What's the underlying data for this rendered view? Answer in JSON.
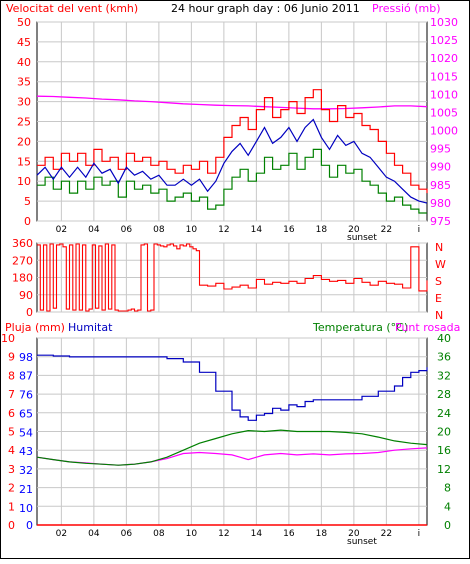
{
  "colors": {
    "wind": "#ff0000",
    "gust": "#ff0000",
    "pressure": "#ff00ff",
    "humidity": "#0000c0",
    "temperature": "#008000",
    "dewpoint": "#ff00ff",
    "rain": "#ff0000",
    "grid": "#c8c8c8",
    "blue_axis": "#0000ff"
  },
  "chart_data": [
    {
      "type": "line",
      "title": "24 hour graph day : 06 Junio 2011",
      "y_left_label": "Velocitat del vent (kmh)",
      "y_right_label": "Pressió (mb)",
      "x_ticks": [
        "02",
        "04",
        "06",
        "08",
        "10",
        "12",
        "14",
        "16",
        "18",
        "20",
        "22",
        "i"
      ],
      "x_annotation": "sunset",
      "y_left_ticks": [
        "0",
        "5",
        "10",
        "15",
        "20",
        "25",
        "30",
        "35",
        "40",
        "45",
        "50"
      ],
      "y_right_ticks": [
        "975",
        "980",
        "985",
        "990",
        "995",
        "1000",
        "1005",
        "1010",
        "1015",
        "1020",
        "1025",
        "1030"
      ],
      "ylim_left": [
        0,
        50
      ],
      "ylim_right": [
        975,
        1030
      ],
      "xlim_hours": [
        0,
        24
      ],
      "series": [
        {
          "name": "Gust",
          "axis": "left",
          "x": [
            0,
            0.5,
            1,
            1.5,
            2,
            2.5,
            3,
            3.5,
            4,
            4.5,
            5,
            5.5,
            6,
            6.5,
            7,
            7.5,
            8,
            8.5,
            9,
            9.5,
            10,
            10.5,
            11,
            11.5,
            12,
            12.5,
            13,
            13.5,
            14,
            14.5,
            15,
            15.5,
            16,
            16.5,
            17,
            17.5,
            18,
            18.5,
            19,
            19.5,
            20,
            20.5,
            21,
            21.5,
            22,
            22.5,
            23,
            23.5,
            24
          ],
          "values": [
            14,
            16,
            13,
            17,
            15,
            17,
            14,
            18,
            15,
            16,
            13,
            17,
            15,
            16,
            14,
            15,
            13,
            12,
            14,
            13,
            15,
            12,
            16,
            21,
            24,
            26,
            23,
            28,
            31,
            26,
            28,
            30,
            27,
            31,
            33,
            28,
            25,
            29,
            26,
            27,
            24,
            23,
            20,
            17,
            14,
            12,
            9,
            8,
            7
          ]
        },
        {
          "name": "Wind",
          "axis": "left",
          "x": [
            0,
            0.5,
            1,
            1.5,
            2,
            2.5,
            3,
            3.5,
            4,
            4.5,
            5,
            5.5,
            6,
            6.5,
            7,
            7.5,
            8,
            8.5,
            9,
            9.5,
            10,
            10.5,
            11,
            11.5,
            12,
            12.5,
            13,
            13.5,
            14,
            14.5,
            15,
            15.5,
            16,
            16.5,
            17,
            17.5,
            18,
            18.5,
            19,
            19.5,
            20,
            20.5,
            21,
            21.5,
            22,
            22.5,
            23,
            23.5,
            24
          ],
          "values": [
            9,
            11,
            8,
            10,
            7,
            10,
            8,
            11,
            9,
            10,
            6,
            10,
            8,
            9,
            7,
            8,
            5,
            6,
            7,
            5,
            6,
            3,
            4,
            8,
            11,
            13,
            10,
            12,
            16,
            13,
            14,
            17,
            13,
            16,
            18,
            14,
            11,
            14,
            12,
            13,
            10,
            9,
            7,
            5,
            6,
            4,
            3,
            2,
            2
          ]
        },
        {
          "name": "Pressió",
          "axis": "right",
          "x": [
            0,
            1,
            2,
            3,
            4,
            5,
            6,
            7,
            8,
            9,
            10,
            11,
            12,
            13,
            14,
            15,
            16,
            17,
            18,
            19,
            20,
            21,
            22,
            23,
            24
          ],
          "values": [
            1009.5,
            1009.4,
            1009.2,
            1009,
            1008.7,
            1008.5,
            1008.2,
            1008,
            1007.7,
            1007.4,
            1007.2,
            1007,
            1006.9,
            1006.8,
            1006.6,
            1006.4,
            1006.2,
            1006,
            1006,
            1006.1,
            1006.3,
            1006.5,
            1006.8,
            1006.8,
            1006.6
          ]
        }
      ]
    },
    {
      "type": "line",
      "y_left_ticks": [
        "0",
        "90",
        "180",
        "270",
        "360"
      ],
      "y_right_ticks": [
        "N",
        "W",
        "S",
        "E",
        "N"
      ],
      "ylim": [
        0,
        360
      ],
      "xlim_hours": [
        0,
        24
      ],
      "series": [
        {
          "name": "Direcció",
          "x": [
            0,
            0.2,
            0.4,
            0.6,
            0.8,
            1,
            1.2,
            1.4,
            1.6,
            1.8,
            2,
            2.2,
            2.4,
            2.6,
            2.8,
            3,
            3.2,
            3.4,
            3.6,
            3.8,
            4,
            4.2,
            4.4,
            4.6,
            4.8,
            5,
            5.2,
            5.4,
            5.6,
            5.8,
            6,
            6.2,
            6.4,
            6.6,
            6.8,
            7,
            7.2,
            7.4,
            7.6,
            7.8,
            8,
            8.2,
            8.4,
            8.6,
            8.8,
            9,
            9.2,
            9.4,
            9.6,
            9.8,
            10,
            10.5,
            11,
            11.5,
            12,
            12.5,
            13,
            13.5,
            14,
            14.5,
            15,
            15.5,
            16,
            16.5,
            17,
            17.5,
            18,
            18.5,
            19,
            19.5,
            20,
            20.5,
            21,
            21.5,
            22,
            22.5,
            23,
            23.5,
            24
          ],
          "values": [
            350,
            10,
            350,
            5,
            355,
            20,
            350,
            355,
            340,
            15,
            350,
            10,
            355,
            10,
            350,
            5,
            15,
            350,
            20,
            345,
            10,
            355,
            15,
            350,
            10,
            5,
            5,
            5,
            10,
            15,
            5,
            10,
            350,
            355,
            5,
            10,
            355,
            350,
            345,
            340,
            350,
            355,
            345,
            330,
            350,
            345,
            355,
            340,
            330,
            320,
            140,
            135,
            150,
            120,
            130,
            140,
            125,
            170,
            145,
            155,
            150,
            160,
            150,
            175,
            190,
            170,
            160,
            165,
            150,
            175,
            155,
            140,
            160,
            150,
            145,
            125,
            340,
            110,
            165
          ]
        }
      ]
    },
    {
      "type": "line",
      "y_left_label": "Pluja (mm)",
      "y_left2_label": "Humitat",
      "y_right_label": "Temperatura (°C)",
      "y_right2_label": "Punt rosada",
      "y_left_ticks": [
        "0",
        "1",
        "2",
        "3",
        "4",
        "5",
        "6",
        "7",
        "8",
        "9",
        "10"
      ],
      "y_left2_ticks": [
        "0",
        "10",
        "21",
        "32",
        "43",
        "54",
        "65",
        "76",
        "87",
        "98"
      ],
      "y_right_ticks": [
        "0",
        "4",
        "8",
        "12",
        "16",
        "20",
        "24",
        "28",
        "32",
        "36",
        "40"
      ],
      "ylim_rain": [
        0,
        10
      ],
      "ylim_humidity": [
        0,
        109
      ],
      "ylim_temperature": [
        0,
        40
      ],
      "xlim_hours": [
        0,
        24
      ],
      "series": [
        {
          "name": "Humitat",
          "x": [
            0,
            1,
            2,
            3,
            4,
            5,
            6,
            7,
            8,
            9,
            10,
            11,
            12,
            12.5,
            13,
            13.5,
            14,
            14.5,
            15,
            15.5,
            16,
            16.5,
            17,
            17.5,
            18,
            19,
            20,
            21,
            22,
            22.5,
            23,
            23.5,
            24
          ],
          "values": [
            99,
            98.5,
            98,
            98,
            98,
            98,
            98,
            98,
            97,
            95,
            89,
            78,
            67,
            63,
            61,
            64,
            65,
            68,
            67,
            70,
            69,
            72,
            73,
            73,
            73,
            73,
            75,
            78,
            81,
            86,
            89,
            90,
            92
          ]
        },
        {
          "name": "Temperatura (°C)",
          "x": [
            0,
            1,
            2,
            3,
            4,
            5,
            6,
            7,
            8,
            9,
            10,
            11,
            12,
            13,
            14,
            15,
            16,
            17,
            18,
            19,
            20,
            21,
            22,
            23,
            24
          ],
          "values": [
            14.5,
            14,
            13.5,
            13.2,
            13,
            12.8,
            13,
            13.5,
            14.5,
            16,
            17.5,
            18.5,
            19.5,
            20.2,
            20,
            20.3,
            20,
            20,
            20,
            19.8,
            19.5,
            18.8,
            18,
            17.5,
            17.2
          ]
        },
        {
          "name": "Punt rosada",
          "x": [
            0,
            1,
            2,
            3,
            4,
            5,
            6,
            7,
            8,
            9,
            10,
            11,
            12,
            12.5,
            13,
            13.5,
            14,
            15,
            16,
            17,
            18,
            19,
            20,
            21,
            22,
            23,
            24
          ],
          "values": [
            14.5,
            14,
            13.5,
            13.3,
            13,
            12.8,
            13,
            13.5,
            14.2,
            15.3,
            15.5,
            15.3,
            15,
            14.5,
            14,
            14.5,
            15,
            15.3,
            15,
            15.2,
            15,
            15.2,
            15.3,
            15.5,
            16,
            16.3,
            16.5
          ]
        },
        {
          "name": "Pluja (mm)",
          "x": [
            0,
            24
          ],
          "values": [
            0,
            0
          ]
        }
      ]
    }
  ]
}
